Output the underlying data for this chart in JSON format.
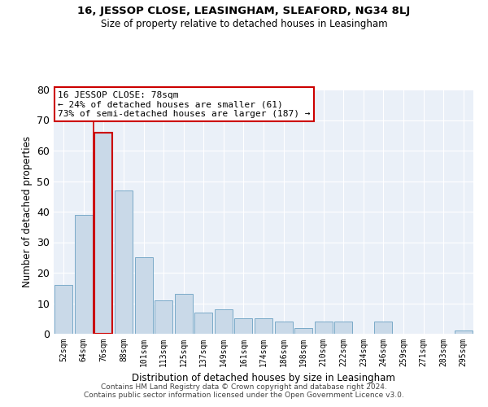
{
  "title1": "16, JESSOP CLOSE, LEASINGHAM, SLEAFORD, NG34 8LJ",
  "title2": "Size of property relative to detached houses in Leasingham",
  "xlabel": "Distribution of detached houses by size in Leasingham",
  "ylabel": "Number of detached properties",
  "bar_labels": [
    "52sqm",
    "64sqm",
    "76sqm",
    "88sqm",
    "101sqm",
    "113sqm",
    "125sqm",
    "137sqm",
    "149sqm",
    "161sqm",
    "174sqm",
    "186sqm",
    "198sqm",
    "210sqm",
    "222sqm",
    "234sqm",
    "246sqm",
    "259sqm",
    "271sqm",
    "283sqm",
    "295sqm"
  ],
  "bar_values": [
    16,
    39,
    66,
    47,
    25,
    11,
    13,
    7,
    8,
    5,
    5,
    4,
    2,
    4,
    4,
    0,
    4,
    0,
    0,
    0,
    1
  ],
  "bar_color": "#c9d9e8",
  "bar_edge_color": "#7aaac8",
  "highlight_bar_index": 2,
  "highlight_edge_color": "#cc0000",
  "annotation_text_line1": "16 JESSOP CLOSE: 78sqm",
  "annotation_text_line2": "← 24% of detached houses are smaller (61)",
  "annotation_text_line3": "73% of semi-detached houses are larger (187) →",
  "annotation_box_color": "#ffffff",
  "annotation_box_edge_color": "#cc0000",
  "ylim": [
    0,
    80
  ],
  "yticks": [
    0,
    10,
    20,
    30,
    40,
    50,
    60,
    70,
    80
  ],
  "background_color": "#eaf0f8",
  "grid_color": "#ffffff",
  "footer_line1": "Contains HM Land Registry data © Crown copyright and database right 2024.",
  "footer_line2": "Contains public sector information licensed under the Open Government Licence v3.0."
}
